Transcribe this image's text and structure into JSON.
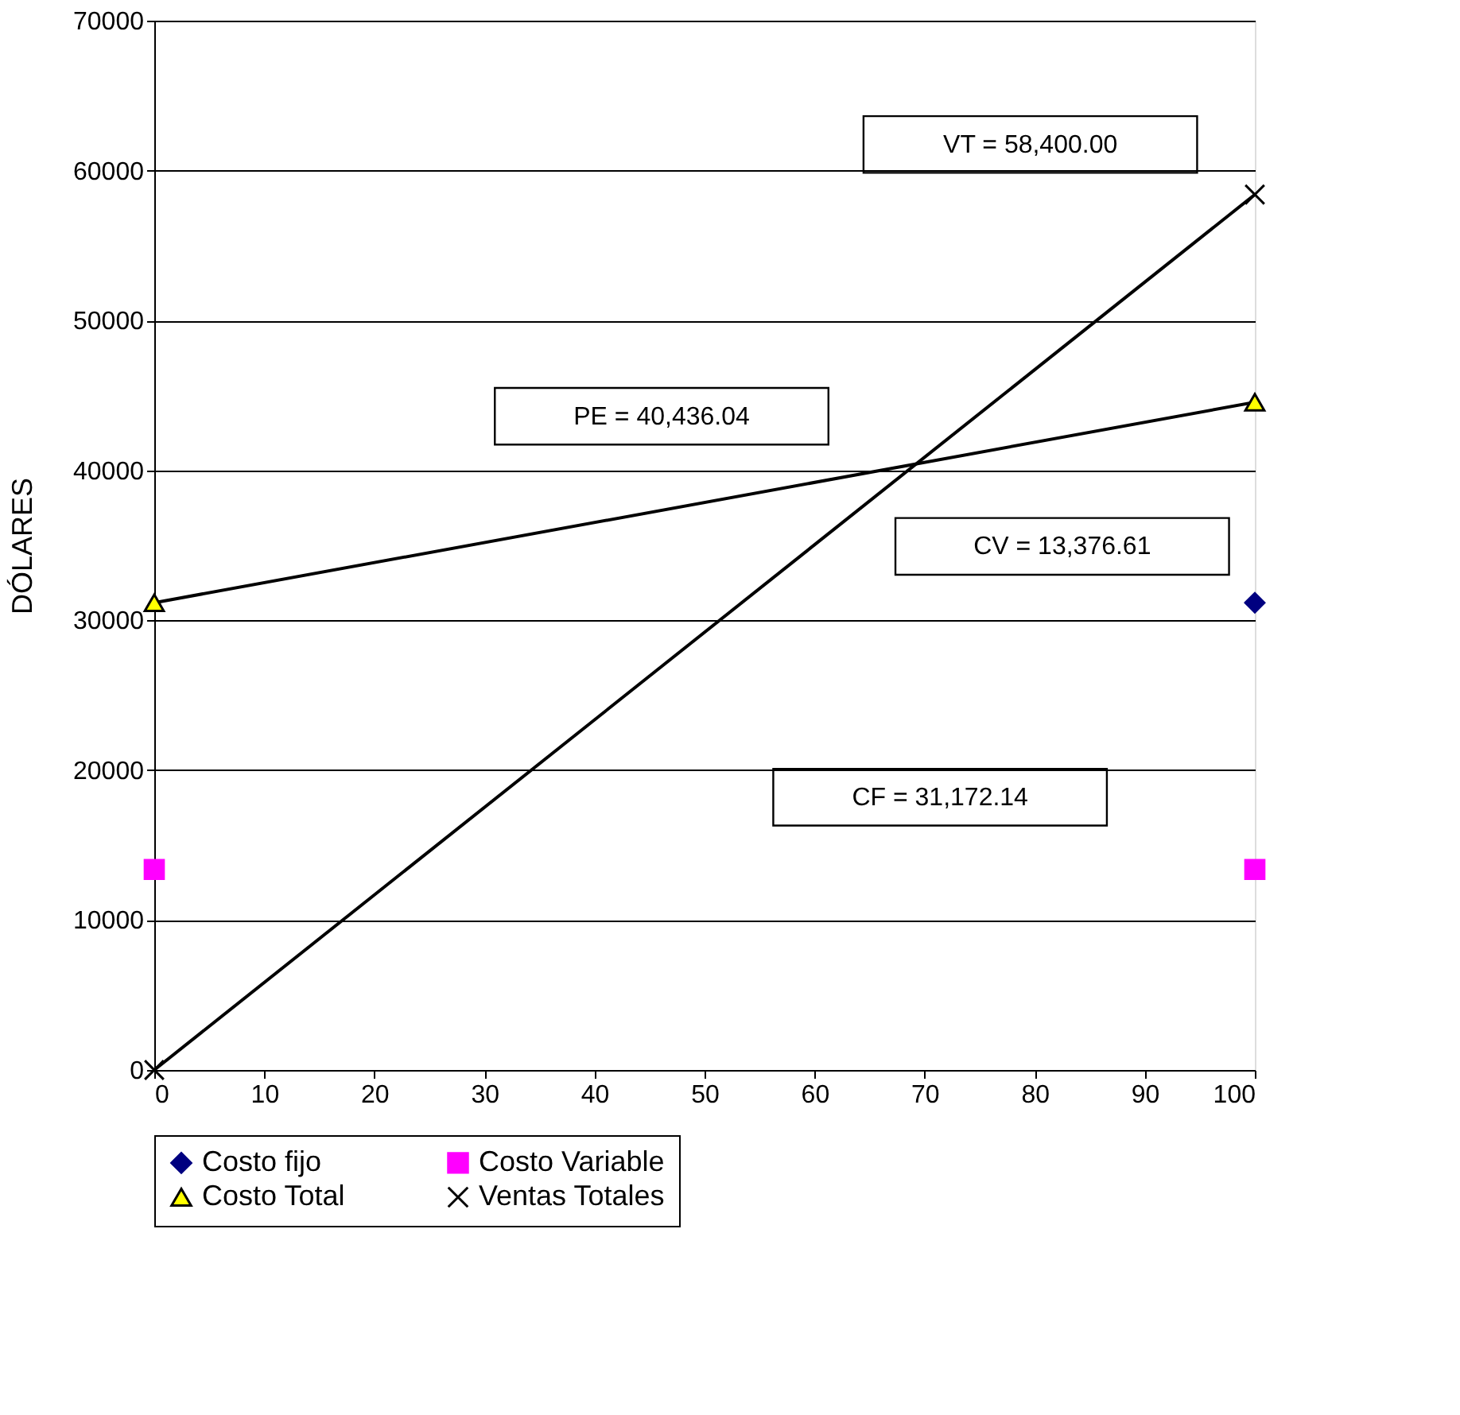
{
  "chart_data": {
    "type": "scatter",
    "ylabel": "DÓLARES",
    "x": [
      0,
      100
    ],
    "xlim": [
      0,
      100
    ],
    "xticks": [
      0,
      10,
      20,
      30,
      40,
      50,
      60,
      70,
      80,
      90,
      100
    ],
    "ylim": [
      0,
      70000
    ],
    "yticks": [
      0,
      10000,
      20000,
      30000,
      40000,
      50000,
      60000,
      70000
    ],
    "grid": "y",
    "legend": "bottom",
    "series": [
      {
        "name": "Costo fijo",
        "color": "#000080",
        "marker": "diamond",
        "values": [
          null,
          31172.14
        ]
      },
      {
        "name": "Costo Variable",
        "color": "#ff00ff",
        "marker": "square",
        "values": [
          13376.61,
          13376.61
        ]
      },
      {
        "name": "Costo Total",
        "type": "line",
        "color": "#ffff00",
        "marker": "triangle",
        "values": [
          31172.14,
          44548.75
        ]
      },
      {
        "name": "Ventas Totales",
        "type": "line",
        "color": "#000000",
        "marker": "cross",
        "values": [
          0,
          58400
        ]
      }
    ],
    "annotations": [
      "VT = 58,400.00",
      "PE = 40,436.04",
      "CV = 13,376.61",
      "CF = 31,172.14"
    ]
  }
}
